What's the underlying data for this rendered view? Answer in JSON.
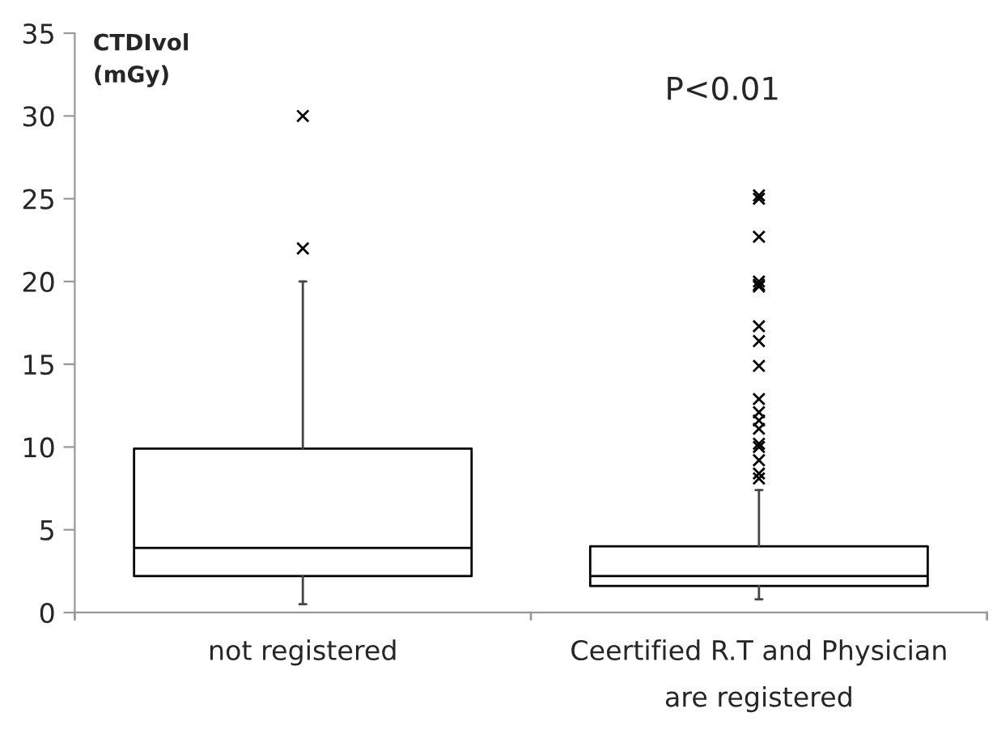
{
  "chart_data": {
    "type": "box",
    "ylabel": "CTDIvol\n(mGy)",
    "annotations": [
      "P<0.01"
    ],
    "categories": [
      "not registered",
      "Ceertified R.T and Physician\nare registered"
    ],
    "boxes": [
      {
        "low": 0.5,
        "q1": 2.2,
        "median": 3.9,
        "q3": 9.9,
        "high": 20,
        "outliers": [
          30,
          22
        ]
      },
      {
        "low": 0.8,
        "q1": 1.6,
        "median": 2.2,
        "q3": 4.0,
        "high": 7.4,
        "outliers": [
          25.2,
          25.0,
          22.7,
          20.0,
          19.8,
          19.7,
          17.3,
          16.4,
          14.9,
          12.9,
          12.1,
          11.6,
          11.1,
          10.2,
          10.0,
          9.2,
          8.4,
          8.1
        ]
      }
    ],
    "ylim": [
      0,
      35
    ],
    "yticks": [
      0,
      5,
      10,
      15,
      20,
      25,
      30,
      35
    ],
    "marker": "cross",
    "grid": false
  }
}
